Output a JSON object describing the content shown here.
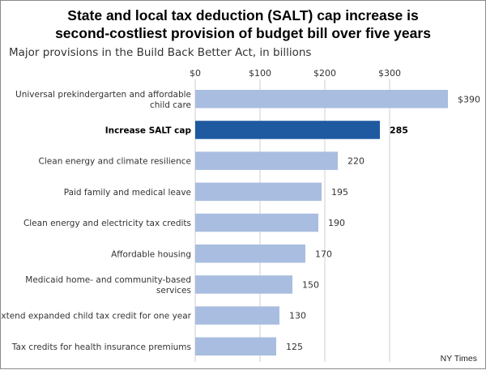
{
  "title_line1": "State and local tax deduction (SALT) cap increase is",
  "title_line2": "second-costliest provision of budget bill over five years",
  "subtitle": "Major provisions in the Build Back Better Act, in billions",
  "source": "NY Times",
  "colors": {
    "bar": "#a9bde0",
    "highlight": "#1f5aa0",
    "gridline": "#cfcfcf"
  },
  "chart_data": {
    "type": "bar",
    "orientation": "horizontal",
    "title": "State and local tax deduction (SALT) cap increase is second-costliest provision of budget bill over five years",
    "subtitle": "Major provisions in the Build Back Better Act, in billions",
    "xlim": [
      0,
      390
    ],
    "ticks": [
      0,
      100,
      200,
      300
    ],
    "tick_labels": [
      "$0",
      "$100",
      "$200",
      "$300"
    ],
    "grid": true,
    "highlight_index": 1,
    "categories": [
      [
        "Universal prekindergarten and affordable",
        "child care"
      ],
      [
        "Increase SALT cap"
      ],
      [
        "Clean energy and climate resilience"
      ],
      [
        "Paid family and medical leave"
      ],
      [
        "Clean energy and electricity tax credits"
      ],
      [
        "Affordable housing"
      ],
      [
        "Medicaid home- and community-based",
        "services"
      ],
      [
        "Extend expanded child tax credit for one year"
      ],
      [
        "Tax credits for health insurance premiums"
      ]
    ],
    "values": [
      390,
      285,
      220,
      195,
      190,
      170,
      150,
      130,
      125
    ],
    "value_labels": [
      "$390",
      "285",
      "220",
      "195",
      "190",
      "170",
      "150",
      "130",
      "125"
    ]
  }
}
